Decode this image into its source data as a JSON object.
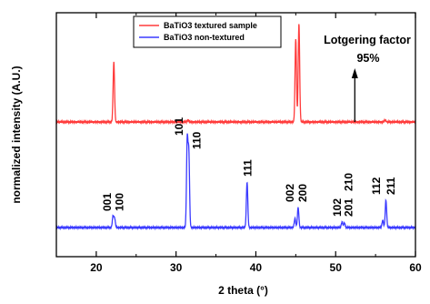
{
  "chart_data": {
    "type": "line",
    "xlabel": "2 theta (°)",
    "ylabel": "normalized intensity (A.U.)",
    "xlim": [
      15,
      60
    ],
    "xticks": [
      20,
      30,
      40,
      50,
      60
    ],
    "grid": false,
    "legend_placement": "top-center",
    "series": [
      {
        "name": "BaTiO3 textured sample",
        "color": "#ff3b3b",
        "baseline": 0.0,
        "peaks": [
          {
            "x": 22.2,
            "y": 0.61
          },
          {
            "x": 31.5,
            "y": 0.02
          },
          {
            "x": 45.0,
            "y": 0.85
          },
          {
            "x": 45.4,
            "y": 1.0
          },
          {
            "x": 56.2,
            "y": 0.02
          }
        ]
      },
      {
        "name": "BaTiO3 non-textured",
        "color": "#3b3bff",
        "baseline": 0.0,
        "peaks": [
          {
            "x": 22.1,
            "y": 0.12
          },
          {
            "x": 22.3,
            "y": 0.1
          },
          {
            "x": 31.4,
            "y": 0.95
          },
          {
            "x": 31.6,
            "y": 0.8
          },
          {
            "x": 38.9,
            "y": 0.5
          },
          {
            "x": 44.9,
            "y": 0.1
          },
          {
            "x": 45.3,
            "y": 0.22
          },
          {
            "x": 50.8,
            "y": 0.06
          },
          {
            "x": 51.1,
            "y": 0.05
          },
          {
            "x": 55.9,
            "y": 0.08
          },
          {
            "x": 56.3,
            "y": 0.3
          }
        ]
      }
    ],
    "peak_labels": [
      {
        "text": "001",
        "x": 21.4,
        "series": "BaTiO3 non-textured"
      },
      {
        "text": "100",
        "x": 22.9,
        "series": "BaTiO3 non-textured"
      },
      {
        "text": "101",
        "x": 30.4,
        "series": "BaTiO3 non-textured"
      },
      {
        "text": "110",
        "x": 32.6,
        "series": "BaTiO3 non-textured"
      },
      {
        "text": "111",
        "x": 39.0,
        "series": "BaTiO3 non-textured"
      },
      {
        "text": "002",
        "x": 44.3,
        "series": "BaTiO3 non-textured"
      },
      {
        "text": "200",
        "x": 45.9,
        "series": "BaTiO3 non-textured"
      },
      {
        "text": "102",
        "x": 50.2,
        "series": "BaTiO3 non-textured"
      },
      {
        "text": "201",
        "x": 51.6,
        "series": "BaTiO3 non-textured"
      },
      {
        "text": "210",
        "x": 51.6,
        "series": "BaTiO3 non-textured"
      },
      {
        "text": "112",
        "x": 55.1,
        "series": "BaTiO3 non-textured"
      },
      {
        "text": "211",
        "x": 56.9,
        "series": "BaTiO3 non-textured"
      }
    ],
    "annotation": {
      "title": "Lotgering factor",
      "value": "95%",
      "arrow_x": 52.4
    }
  }
}
